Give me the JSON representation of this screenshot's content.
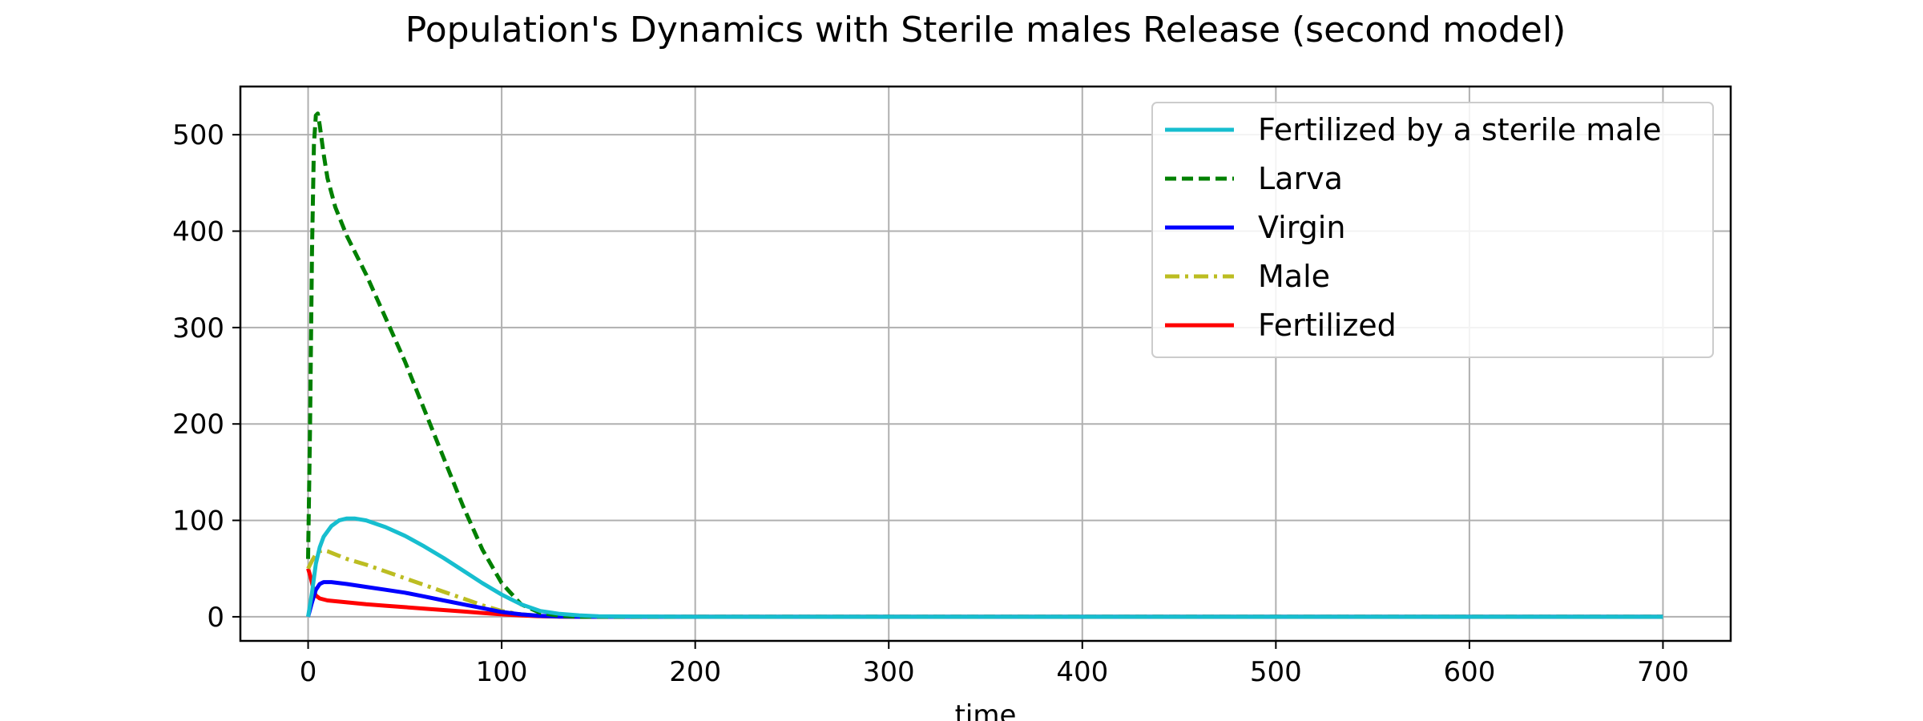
{
  "chart_data": {
    "type": "line",
    "title": "Population's Dynamics with Sterile males Release (second model)",
    "xlabel": "time",
    "ylabel": "",
    "xlim": [
      -35,
      735
    ],
    "ylim": [
      -25,
      550
    ],
    "xticks": [
      0,
      100,
      200,
      300,
      400,
      500,
      600,
      700
    ],
    "yticks": [
      0,
      100,
      200,
      300,
      400,
      500
    ],
    "grid": true,
    "legend_position": "top-right",
    "series": [
      {
        "name": "Fertilized by a sterile male",
        "color": "#17becf",
        "dash": "solid",
        "x": [
          0,
          2,
          4,
          6,
          8,
          12,
          16,
          20,
          24,
          30,
          40,
          50,
          60,
          70,
          80,
          90,
          100,
          110,
          120,
          130,
          140,
          150,
          200,
          300,
          400,
          500,
          600,
          700
        ],
        "y": [
          0,
          25,
          55,
          72,
          83,
          94,
          100,
          102,
          102,
          100,
          93,
          84,
          73,
          61,
          48,
          35,
          23,
          13,
          6,
          3,
          1.5,
          0.5,
          0,
          0,
          0,
          0,
          0,
          0
        ]
      },
      {
        "name": "Larva",
        "color": "#008000",
        "dash": "dashed",
        "x": [
          0,
          1,
          2,
          3,
          4,
          5,
          6,
          8,
          10,
          14,
          20,
          30,
          40,
          50,
          60,
          70,
          80,
          90,
          100,
          110,
          120,
          130,
          140,
          150,
          200,
          300,
          400,
          500,
          600,
          700
        ],
        "y": [
          60,
          200,
          380,
          490,
          520,
          522,
          510,
          480,
          455,
          425,
          395,
          355,
          310,
          265,
          215,
          165,
          115,
          70,
          35,
          13,
          4,
          1,
          0,
          0,
          0,
          0,
          0,
          0,
          0,
          0
        ]
      },
      {
        "name": "Virgin",
        "color": "#0000ff",
        "dash": "solid",
        "x": [
          0,
          2,
          4,
          6,
          8,
          12,
          20,
          30,
          40,
          50,
          60,
          70,
          80,
          90,
          100,
          110,
          120,
          130,
          140,
          150,
          200,
          300,
          400,
          500,
          600,
          700
        ],
        "y": [
          0,
          15,
          28,
          34,
          36,
          36,
          34,
          31,
          28,
          25,
          21,
          17,
          13,
          9,
          5,
          2.5,
          1,
          0.3,
          0,
          0,
          0,
          0,
          0,
          0,
          0,
          0
        ]
      },
      {
        "name": "Male",
        "color": "#bcbd22",
        "dash": "dashdot",
        "x": [
          0,
          2,
          4,
          6,
          8,
          10,
          15,
          20,
          30,
          40,
          50,
          60,
          70,
          80,
          90,
          100,
          110,
          120,
          130,
          140,
          150,
          200,
          300,
          400,
          500,
          600,
          700
        ],
        "y": [
          50,
          58,
          65,
          68,
          69,
          68,
          64,
          60,
          54,
          47,
          40,
          33,
          26,
          19,
          12,
          6,
          2.5,
          1,
          0.3,
          0,
          0,
          0,
          0,
          0,
          0,
          0,
          0
        ]
      },
      {
        "name": "Fertilized",
        "color": "#ff0000",
        "dash": "solid",
        "x": [
          0,
          1,
          2,
          3,
          4,
          6,
          10,
          20,
          30,
          40,
          50,
          60,
          70,
          80,
          90,
          100,
          110,
          120,
          130,
          140,
          150,
          200,
          300,
          400,
          500,
          600,
          700
        ],
        "y": [
          50,
          43,
          35,
          27,
          22,
          19,
          17,
          15,
          13,
          11.5,
          10,
          8.5,
          7,
          5.5,
          4,
          2.5,
          1.3,
          0.6,
          0.2,
          0,
          0,
          0,
          0,
          0,
          0,
          0,
          0
        ]
      }
    ]
  }
}
